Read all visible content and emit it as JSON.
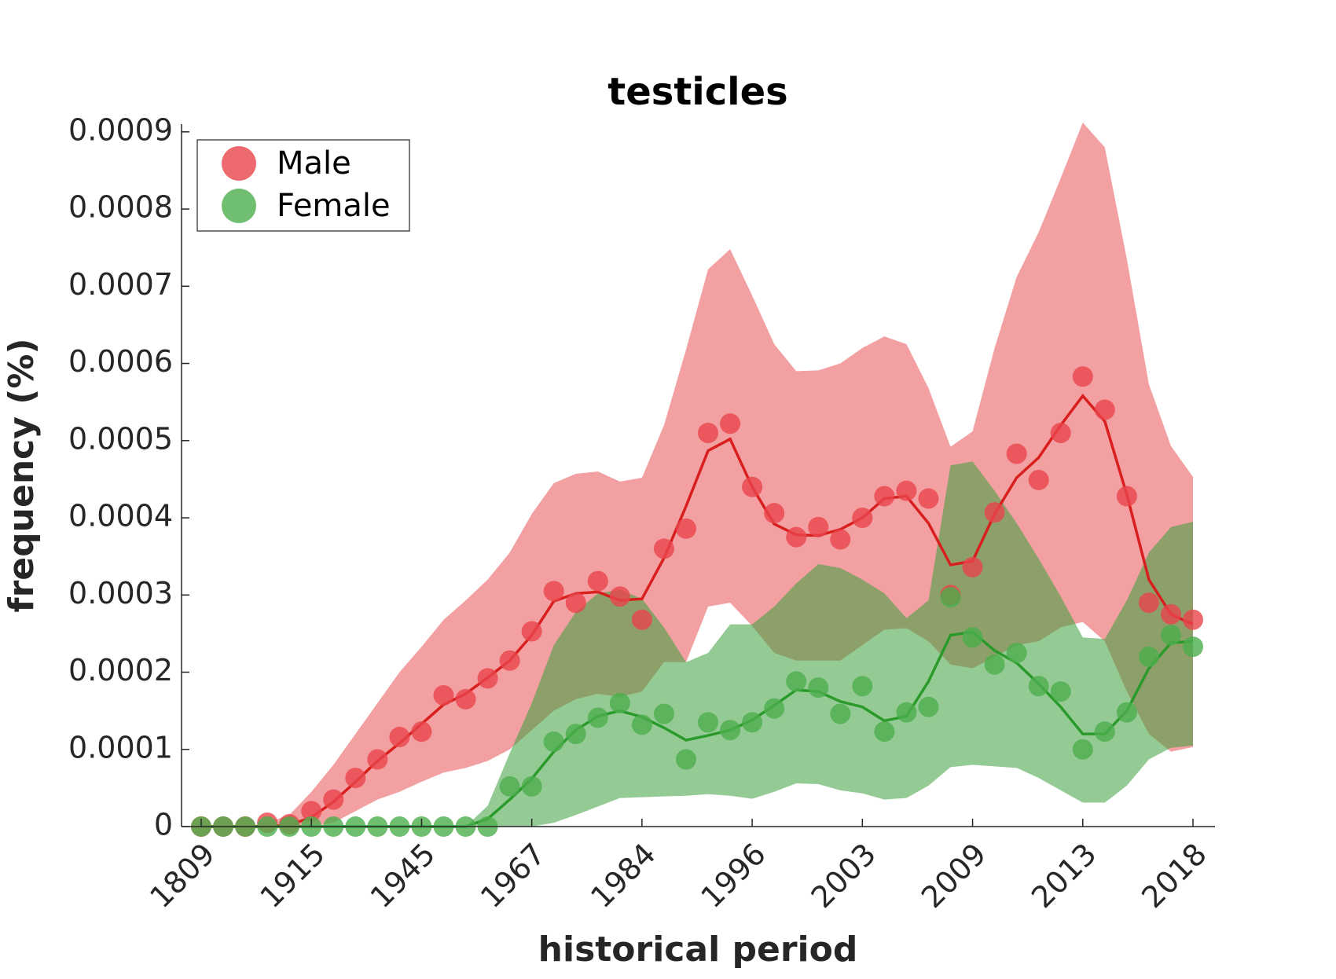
{
  "chart_data": {
    "type": "line",
    "title": "testicles",
    "x_label": "historical period",
    "y_label": "frequency (%)",
    "categories": [
      "1809",
      null,
      null,
      null,
      null,
      "1915",
      null,
      null,
      null,
      null,
      "1945",
      null,
      null,
      null,
      null,
      "1967",
      null,
      null,
      null,
      null,
      "1984",
      null,
      null,
      null,
      null,
      "1996",
      null,
      null,
      null,
      null,
      "2003",
      null,
      null,
      null,
      null,
      "2009",
      null,
      null,
      null,
      null,
      "2013",
      null,
      null,
      null,
      null,
      "2018"
    ],
    "ylim": [
      0,
      0.00091
    ],
    "yticks": [
      0,
      0.0001,
      0.0002,
      0.0003,
      0.0004,
      0.0005,
      0.0006,
      0.0007,
      0.0008,
      0.0009
    ],
    "legend": "upper-left",
    "series": [
      {
        "name": "Male",
        "color": "#e8454b",
        "line_color": "#d91e1e",
        "band_color": "#f2a0a2",
        "values": [
          0,
          0,
          0,
          5e-06,
          3e-06,
          2e-05,
          3.5e-05,
          6.3e-05,
          8.7e-05,
          0.000116,
          0.000123,
          0.00017,
          0.000165,
          0.000192,
          0.000215,
          0.000253,
          0.000305,
          0.00029,
          0.000318,
          0.000298,
          0.000268,
          0.00036,
          0.000386,
          0.00051,
          0.000522,
          0.00044,
          0.000406,
          0.000375,
          0.000388,
          0.000372,
          0.0004,
          0.000428,
          0.000435,
          0.000425,
          0.0003,
          0.000336,
          0.000407,
          0.000483,
          0.000449,
          0.00051,
          0.000583,
          0.00054,
          0.000428,
          0.00029,
          0.000275,
          0.000268
        ],
        "smooth": [
          0,
          0,
          0,
          0,
          2e-06,
          1.2e-05,
          3.2e-05,
          5.8e-05,
          8.5e-05,
          0.000108,
          0.000133,
          0.000158,
          0.000172,
          0.000193,
          0.000215,
          0.000248,
          0.000292,
          0.000302,
          0.000304,
          0.000293,
          0.000295,
          0.000348,
          0.000415,
          0.000487,
          0.000502,
          0.00044,
          0.000392,
          0.000378,
          0.000377,
          0.000385,
          0.0004,
          0.000425,
          0.000428,
          0.000393,
          0.000339,
          0.000344,
          0.000405,
          0.000452,
          0.000478,
          0.00052,
          0.000558,
          0.000525,
          0.00043,
          0.00032,
          0.000275,
          0.000262
        ],
        "band_upper": [
          0,
          0,
          0,
          5e-06,
          1.5e-05,
          4.5e-05,
          8e-05,
          0.00012,
          0.00016,
          0.0002,
          0.000233,
          0.000268,
          0.000293,
          0.00032,
          0.000355,
          0.000405,
          0.000445,
          0.000457,
          0.00046,
          0.000447,
          0.000452,
          0.00052,
          0.000618,
          0.000722,
          0.000748,
          0.000688,
          0.000625,
          0.00059,
          0.000591,
          0.0006,
          0.00062,
          0.000635,
          0.000625,
          0.000568,
          0.000492,
          0.000512,
          0.00062,
          0.000712,
          0.00077,
          0.00084,
          0.000912,
          0.00088,
          0.000735,
          0.000573,
          0.000493,
          0.000453
        ],
        "band_lower": [
          0,
          0,
          0,
          0,
          0,
          0,
          5e-06,
          2e-05,
          3.5e-05,
          4.5e-05,
          5.8e-05,
          7e-05,
          7.6e-05,
          8.5e-05,
          0.0001,
          0.000125,
          0.00015,
          0.000165,
          0.000172,
          0.000168,
          0.000175,
          0.000213,
          0.000213,
          0.000285,
          0.00029,
          0.00026,
          0.000225,
          0.000215,
          0.000215,
          0.000215,
          0.000235,
          0.000255,
          0.000257,
          0.00024,
          0.00021,
          0.000205,
          0.00022,
          0.000235,
          0.00024,
          0.000258,
          0.000265,
          0.00024,
          0.000175,
          0.00012,
          9.7e-05,
          0.000103
        ]
      },
      {
        "name": "Female",
        "color": "#4cae4c",
        "line_color": "#2a9a2a",
        "band_color": "#3ca03c",
        "values": [
          0,
          0,
          0,
          0,
          0,
          0,
          0,
          0,
          0,
          0,
          0,
          0,
          0,
          0,
          5.2e-05,
          5.2e-05,
          0.00011,
          0.00012,
          0.000141,
          0.00016,
          0.000132,
          0.000146,
          8.7e-05,
          0.000135,
          0.000125,
          0.000135,
          0.000153,
          0.000188,
          0.00018,
          0.000146,
          0.000182,
          0.000123,
          0.000148,
          0.000155,
          0.000297,
          0.000245,
          0.00021,
          0.000225,
          0.000182,
          0.000175,
          0.0001,
          0.000123,
          0.000148,
          0.00022,
          0.000248,
          0.000233
        ],
        "smooth": [
          0,
          0,
          0,
          0,
          0,
          0,
          0,
          0,
          0,
          0,
          0,
          0,
          0,
          1e-05,
          3.5e-05,
          6.2e-05,
          9.7e-05,
          0.000125,
          0.000143,
          0.00015,
          0.000142,
          0.000128,
          0.000112,
          0.000118,
          0.000125,
          0.000138,
          0.000157,
          0.000177,
          0.000175,
          0.000162,
          0.000155,
          0.000137,
          0.000143,
          0.000188,
          0.000248,
          0.000252,
          0.000228,
          0.000212,
          0.000185,
          0.000155,
          0.00012,
          0.00012,
          0.00015,
          0.000205,
          0.000238,
          0.00024
        ],
        "band_upper": [
          0,
          0,
          0,
          0,
          0,
          0,
          0,
          0,
          0,
          0,
          0,
          0,
          0,
          2.7e-05,
          9.5e-05,
          0.00016,
          0.000235,
          0.000278,
          0.000302,
          0.000307,
          0.000295,
          0.000258,
          0.000213,
          0.000225,
          0.000262,
          0.000262,
          0.000285,
          0.000315,
          0.00034,
          0.000335,
          0.00032,
          0.000302,
          0.00027,
          0.000293,
          0.000468,
          0.000473,
          0.000435,
          0.000393,
          0.000347,
          0.000298,
          0.000245,
          0.000243,
          0.000293,
          0.000355,
          0.000388,
          0.000395
        ],
        "band_lower": [
          0,
          0,
          0,
          0,
          0,
          0,
          0,
          0,
          0,
          0,
          0,
          0,
          0,
          0,
          0,
          0,
          5e-06,
          1.5e-05,
          2.6e-05,
          3.7e-05,
          3.8e-05,
          3.9e-05,
          4e-05,
          4.2e-05,
          4e-05,
          3.6e-05,
          4.5e-05,
          5.6e-05,
          5.5e-05,
          4.7e-05,
          4.3e-05,
          3.5e-05,
          3.7e-05,
          5.3e-05,
          7.7e-05,
          8e-05,
          7.8e-05,
          7.6e-05,
          6.3e-05,
          4.7e-05,
          3.1e-05,
          3.1e-05,
          5.3e-05,
          8.7e-05,
          0.000102,
          0.000105
        ]
      }
    ]
  }
}
